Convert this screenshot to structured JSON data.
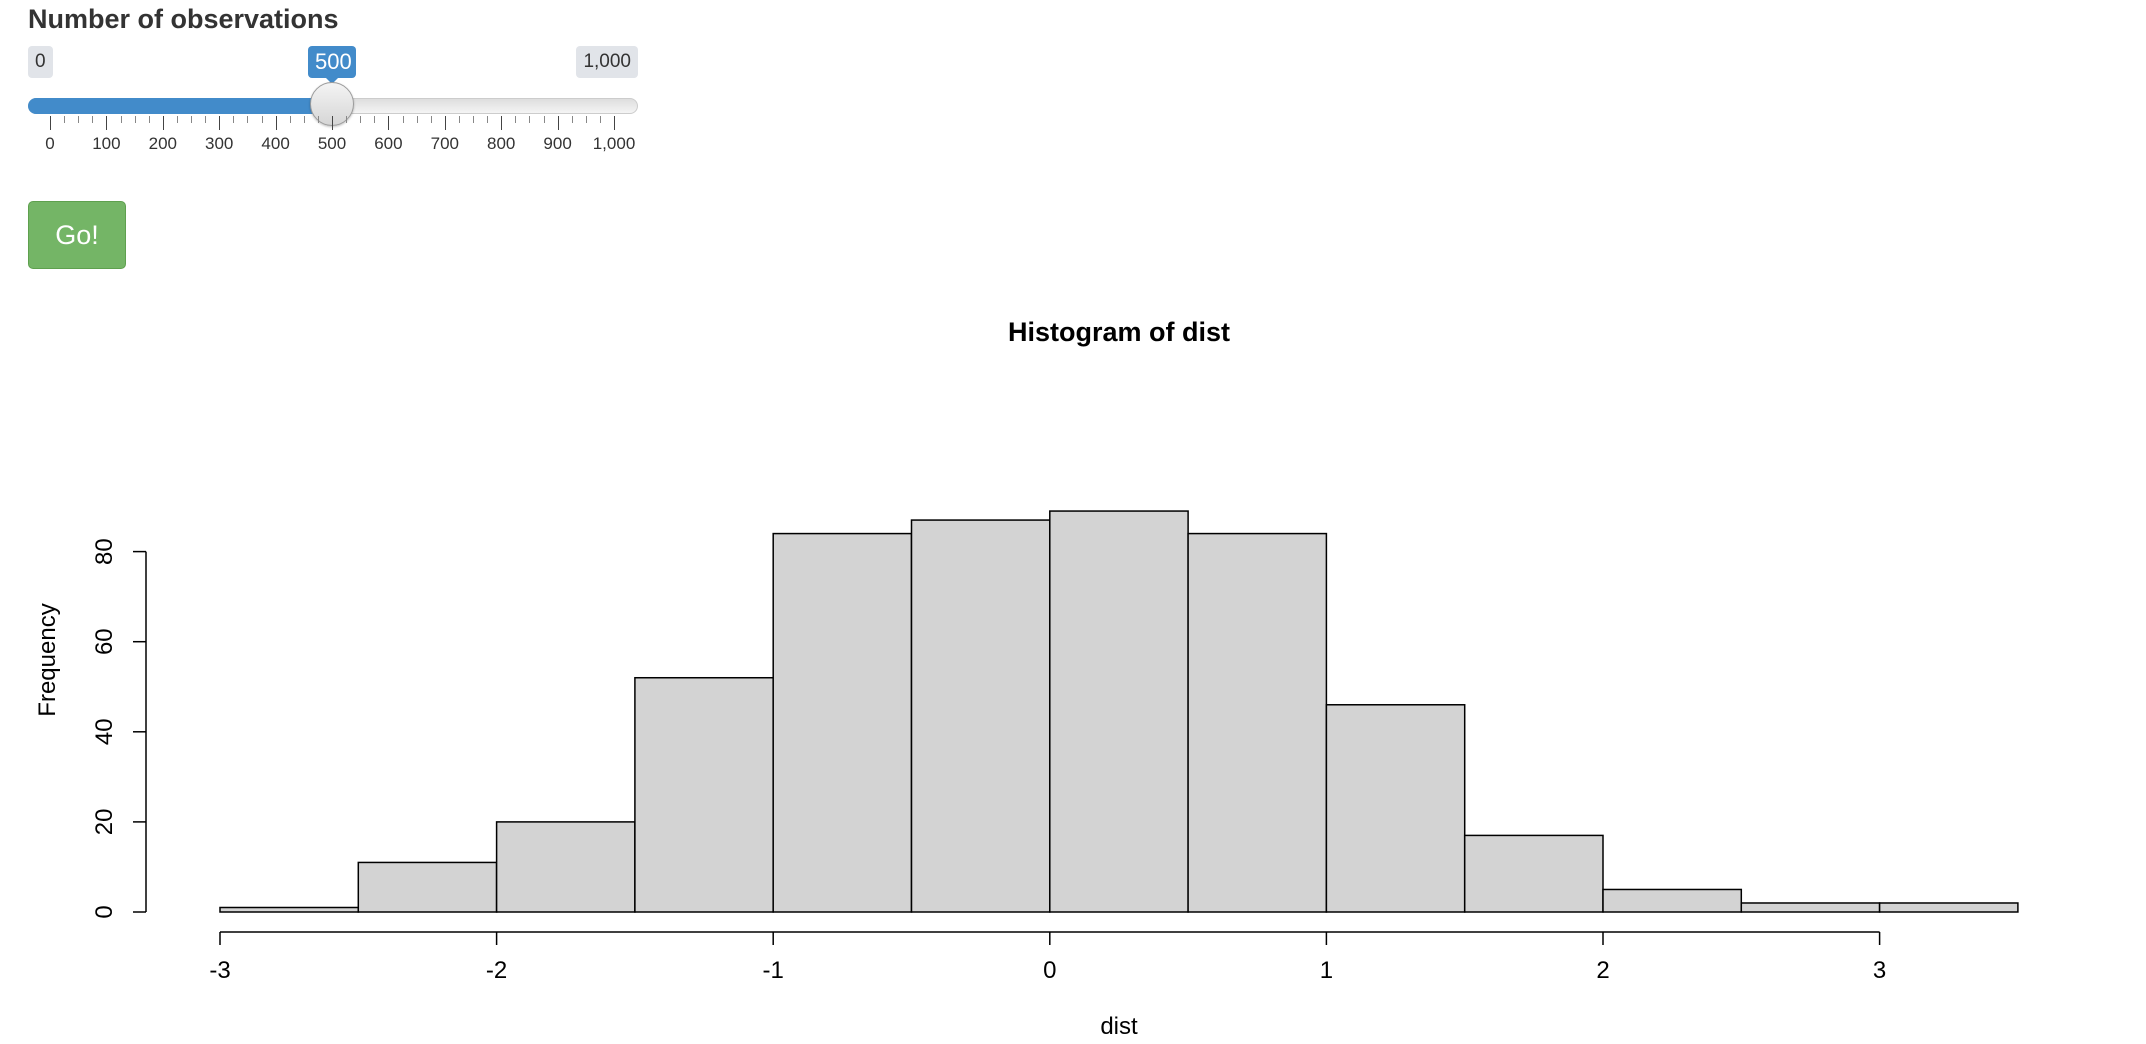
{
  "slider": {
    "label": "Number of observations",
    "min": 0,
    "max": 1000,
    "value": 500,
    "min_label": "0",
    "max_label": "1,000",
    "value_label": "500",
    "grid_labels": [
      "0",
      "100",
      "200",
      "300",
      "400",
      "500",
      "600",
      "700",
      "800",
      "900",
      "1,000"
    ],
    "bar_color": "#428bca"
  },
  "button": {
    "label": "Go!",
    "color": "#74b566"
  },
  "chart_data": {
    "type": "bar",
    "title": "Histogram of dist",
    "xlabel": "dist",
    "ylabel": "Frequency",
    "bin_edges": [
      -3,
      -2.5,
      -2,
      -1.5,
      -1,
      -0.5,
      0,
      0.5,
      1,
      1.5,
      2,
      2.5,
      3,
      3.5
    ],
    "values": [
      1,
      11,
      20,
      52,
      84,
      87,
      89,
      84,
      46,
      17,
      5,
      2,
      2
    ],
    "xticks": [
      "-3",
      "-2",
      "-1",
      "0",
      "1",
      "2",
      "3"
    ],
    "yticks": [
      "0",
      "20",
      "40",
      "60",
      "80"
    ],
    "xlim": [
      -3,
      3.5
    ],
    "ylim": [
      0,
      89
    ],
    "grid": false,
    "bar_fill": "#d3d3d3",
    "bar_stroke": "#000000"
  }
}
